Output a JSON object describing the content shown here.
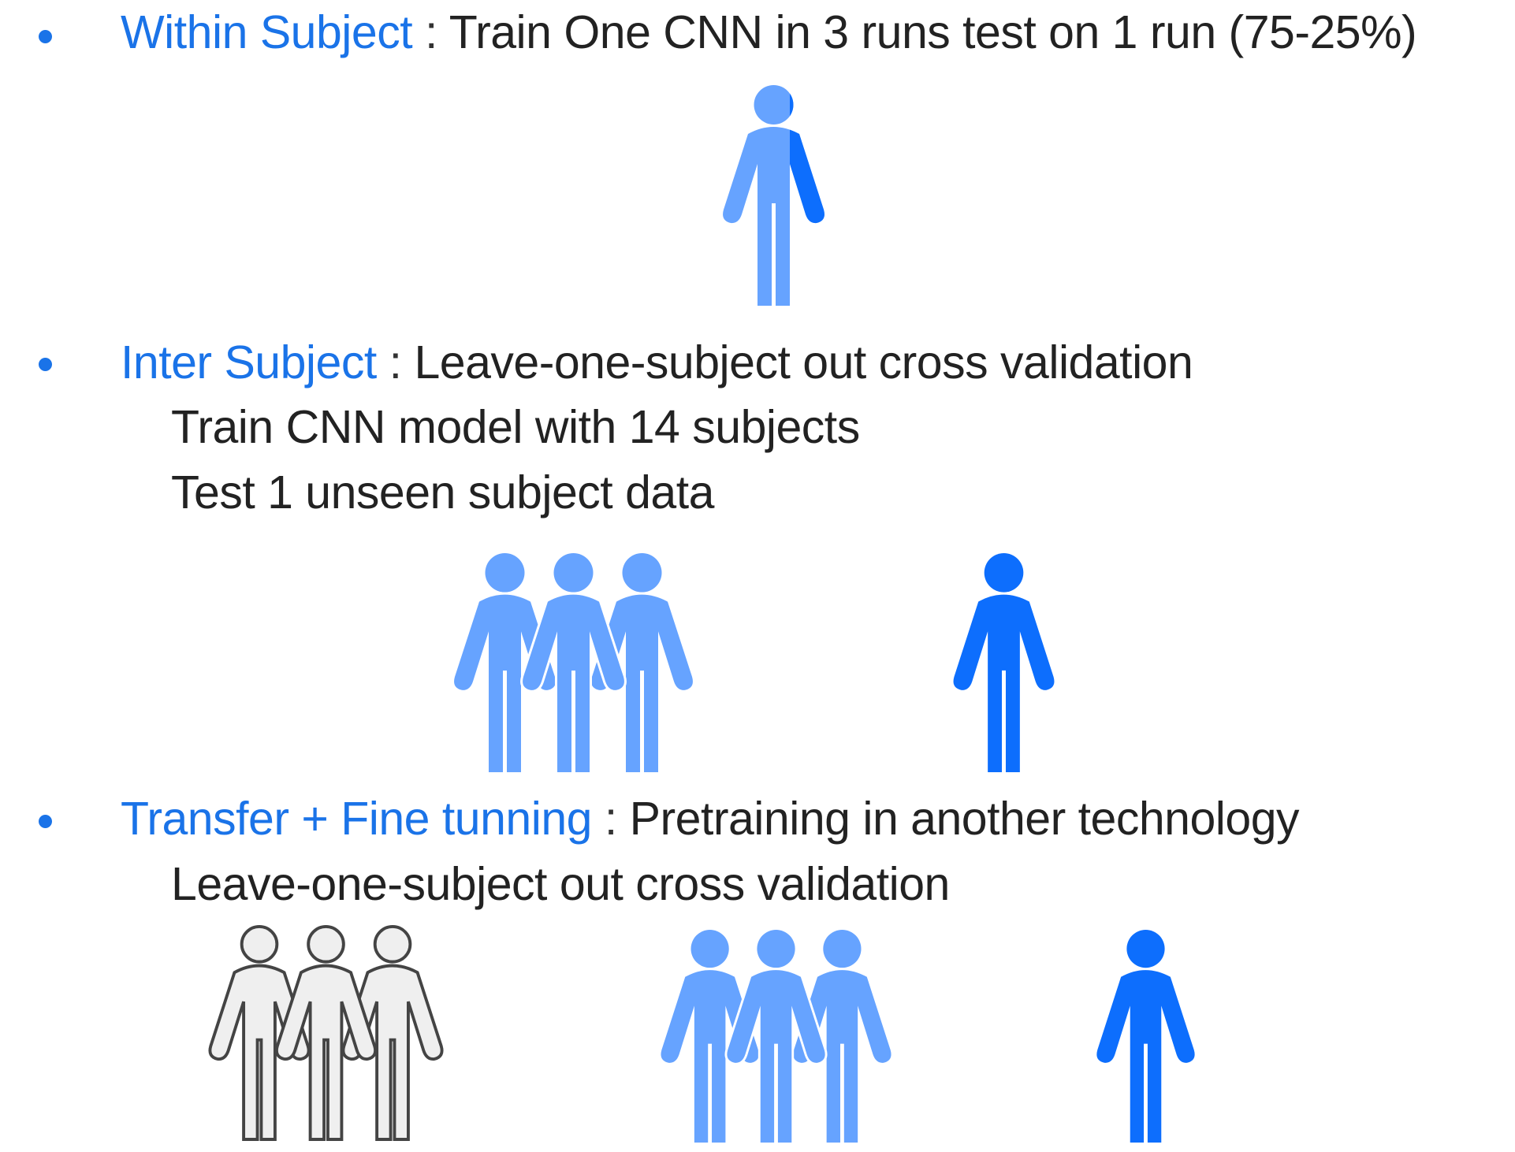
{
  "colors": {
    "accent": "#1a73e8",
    "person_light": "#66a3ff",
    "person_dark": "#0d6efd",
    "person_outline_fill": "#efefef",
    "person_outline_stroke": "#444444"
  },
  "sections": [
    {
      "heading": "Within Subject",
      "separator": " : ",
      "text": "Train One CNN in 3 runs test on 1 run (75-25%)",
      "sublines": []
    },
    {
      "heading": "Inter  Subject",
      "separator": " : ",
      "text": "Leave-one-subject out cross validation",
      "sublines": [
        "Train CNN model with 14 subjects",
        "Test 1 unseen subject data"
      ]
    },
    {
      "heading": "Transfer  + Fine tunning",
      "separator": " : ",
      "text": "Pretraining in another technology",
      "sublines": [
        "Leave-one-subject out cross validation"
      ]
    }
  ],
  "figures": {
    "within": {
      "icon": "person-split-icon"
    },
    "inter": {
      "group_icon": "person-group-light-icon",
      "single_icon": "person-dark-icon"
    },
    "transfer": {
      "pretrain_icon": "person-group-outline-icon",
      "train_icon": "person-group-light-icon",
      "test_icon": "person-dark-icon"
    }
  }
}
